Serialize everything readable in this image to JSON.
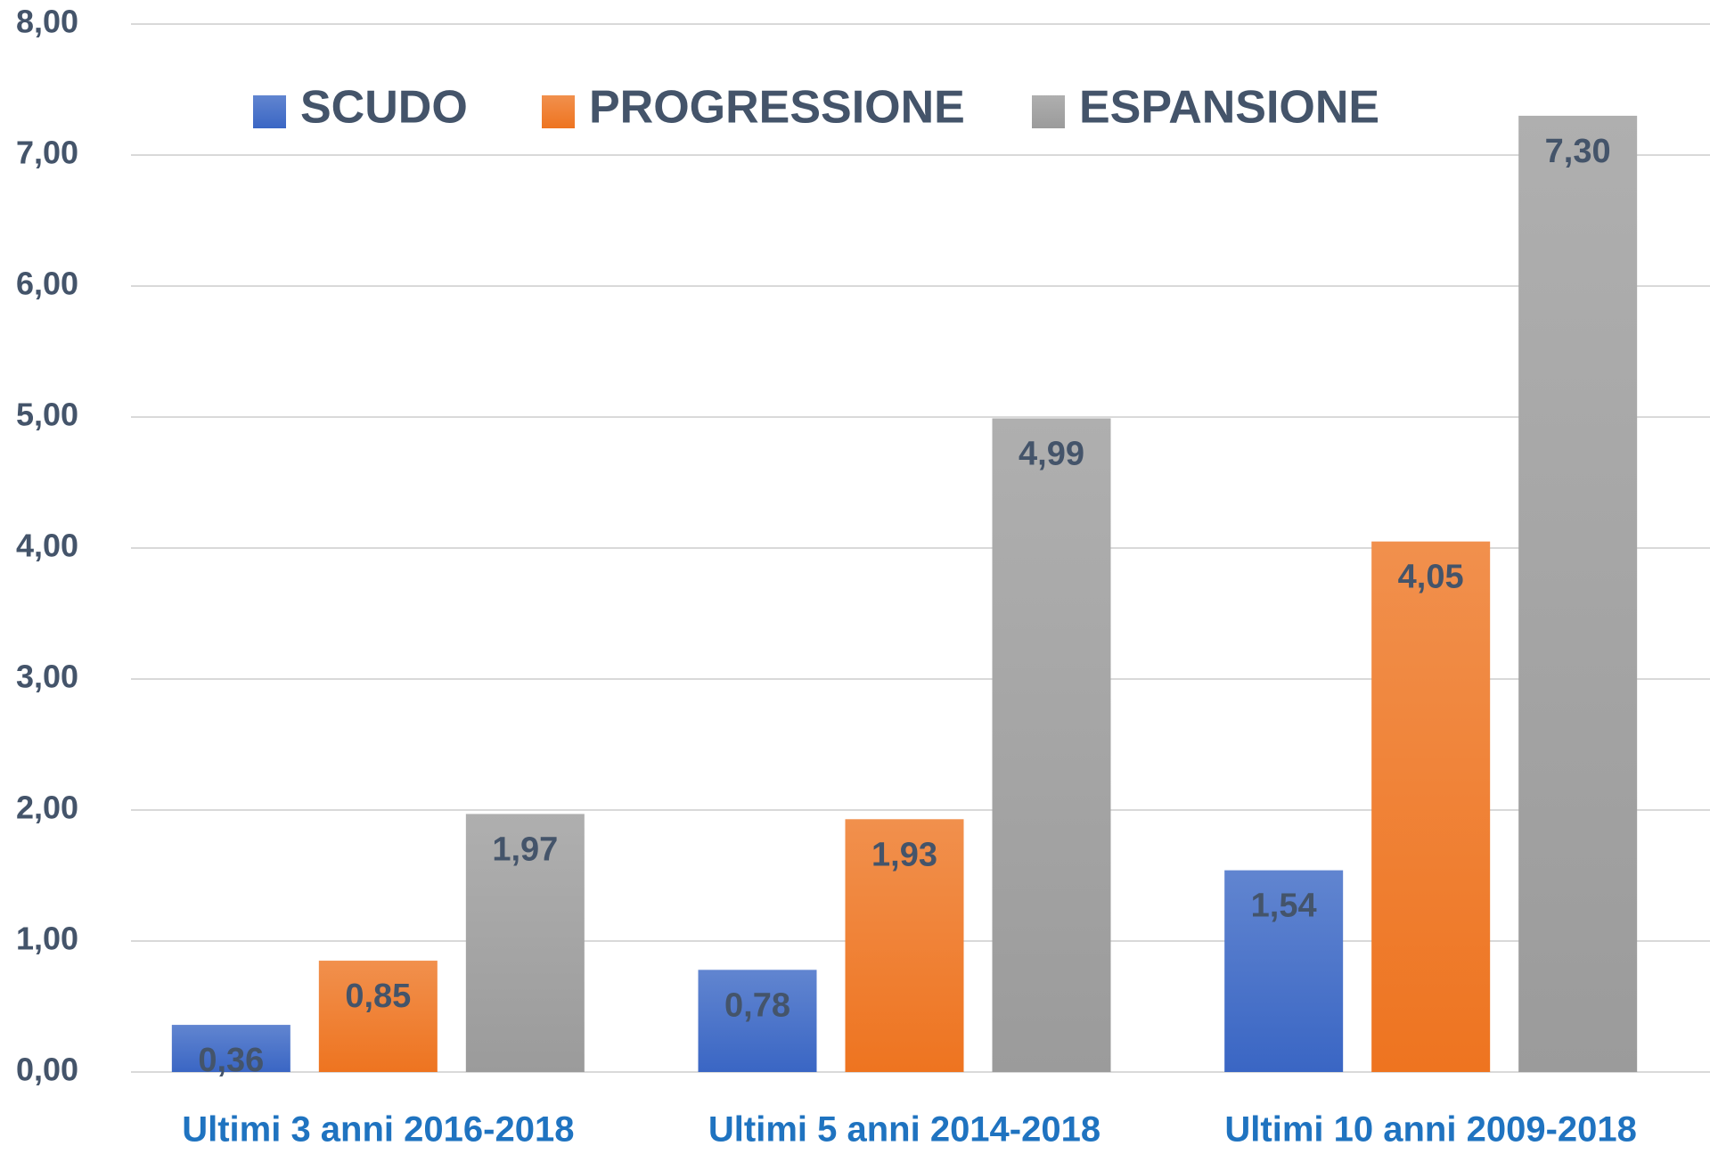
{
  "chart_data": {
    "type": "bar",
    "categories": [
      "Ultimi 3 anni 2016-2018",
      "Ultimi 5 anni 2014-2018",
      "Ultimi 10 anni 2009-2018"
    ],
    "series": [
      {
        "name": "SCUDO",
        "color": "#3a66c4",
        "values": [
          0.36,
          0.78,
          1.54
        ],
        "value_labels": [
          "0,36",
          "0,78",
          "1,54"
        ]
      },
      {
        "name": "PROGRESSIONE",
        "color": "#ee7420",
        "values": [
          0.85,
          1.93,
          4.05
        ],
        "value_labels": [
          "0,85",
          "1,93",
          "4,05"
        ]
      },
      {
        "name": "ESPANSIONE",
        "color": "#9b9b9b",
        "values": [
          1.97,
          4.99,
          7.3
        ],
        "value_labels": [
          "1,97",
          "4,99",
          "7,30"
        ]
      }
    ],
    "ylim": [
      0,
      8
    ],
    "yticks": [
      {
        "value": 0,
        "label": "0,00"
      },
      {
        "value": 1,
        "label": "1,00"
      },
      {
        "value": 2,
        "label": "2,00"
      },
      {
        "value": 3,
        "label": "3,00"
      },
      {
        "value": 4,
        "label": "4,00"
      },
      {
        "value": 5,
        "label": "5,00"
      },
      {
        "value": 6,
        "label": "6,00"
      },
      {
        "value": 7,
        "label": "7,00"
      },
      {
        "value": 8,
        "label": "8,00"
      }
    ],
    "grid": true,
    "legend": "top"
  }
}
